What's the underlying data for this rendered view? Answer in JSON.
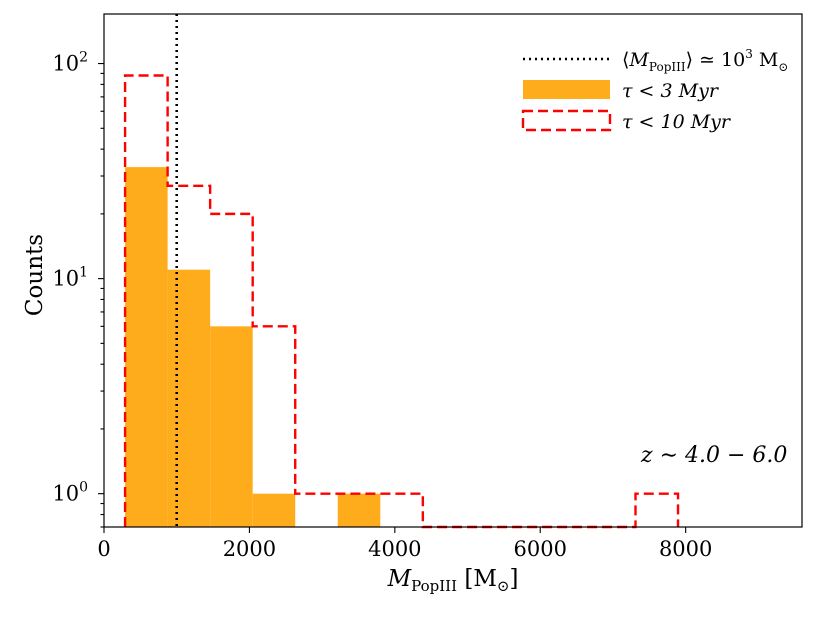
{
  "chart_data": {
    "type": "histogram",
    "title": "",
    "xlabel": "M_PopIII [M_⊙]",
    "ylabel": "Counts",
    "yscale": "log",
    "xlim": [
      0,
      9600
    ],
    "ylim": [
      0.7,
      170
    ],
    "x_ticks": [
      0,
      2000,
      4000,
      6000,
      8000
    ],
    "x_tick_labels": [
      "0",
      "2000",
      "4000",
      "6000",
      "8000"
    ],
    "y_ticks": [
      1,
      10,
      100
    ],
    "y_tick_labels": [
      {
        "base": "10",
        "exp": "0"
      },
      {
        "base": "10",
        "exp": "1"
      },
      {
        "base": "10",
        "exp": "2"
      }
    ],
    "bin_edges": [
      290,
      875,
      1460,
      2045,
      2630,
      3215,
      3800,
      4385,
      4970,
      5555,
      6140,
      6725,
      7310,
      7895
    ],
    "series": [
      {
        "name": "τ < 3 Myr",
        "style": "filled",
        "color": "#ffac1c",
        "values": [
          33,
          11,
          6,
          1,
          0,
          1,
          0,
          0,
          0,
          0,
          0,
          0,
          0
        ]
      },
      {
        "name": "τ < 10 Myr",
        "style": "step-dashed",
        "color": "#ff0000",
        "values": [
          88,
          27,
          20,
          6,
          1,
          1,
          1,
          0,
          0,
          0,
          0,
          0,
          1
        ]
      }
    ],
    "vline": {
      "x": 1000,
      "name": "⟨M_PopIII⟩ ≃ 10³ M_⊙",
      "color": "#000000",
      "style": "dotted"
    },
    "legend": {
      "position": "top-right",
      "entries": [
        {
          "prefix": "⟨",
          "var": "M",
          "sub": "PopIII",
          "mid": "⟩ ≃ 10",
          "sup": "3",
          "unit": " M",
          "unit_sub": "⊙"
        },
        {
          "text": "τ < 3 Myr"
        },
        {
          "text": "τ < 10 Myr"
        }
      ]
    },
    "annotation": {
      "text": "z ∼ 4.0 − 6.0",
      "position": "lower-right"
    },
    "xlabel_parts": {
      "var": "M",
      "sub": "PopIII",
      "unit": " [M",
      "unit_sub": "⊙",
      "close": "]"
    }
  }
}
